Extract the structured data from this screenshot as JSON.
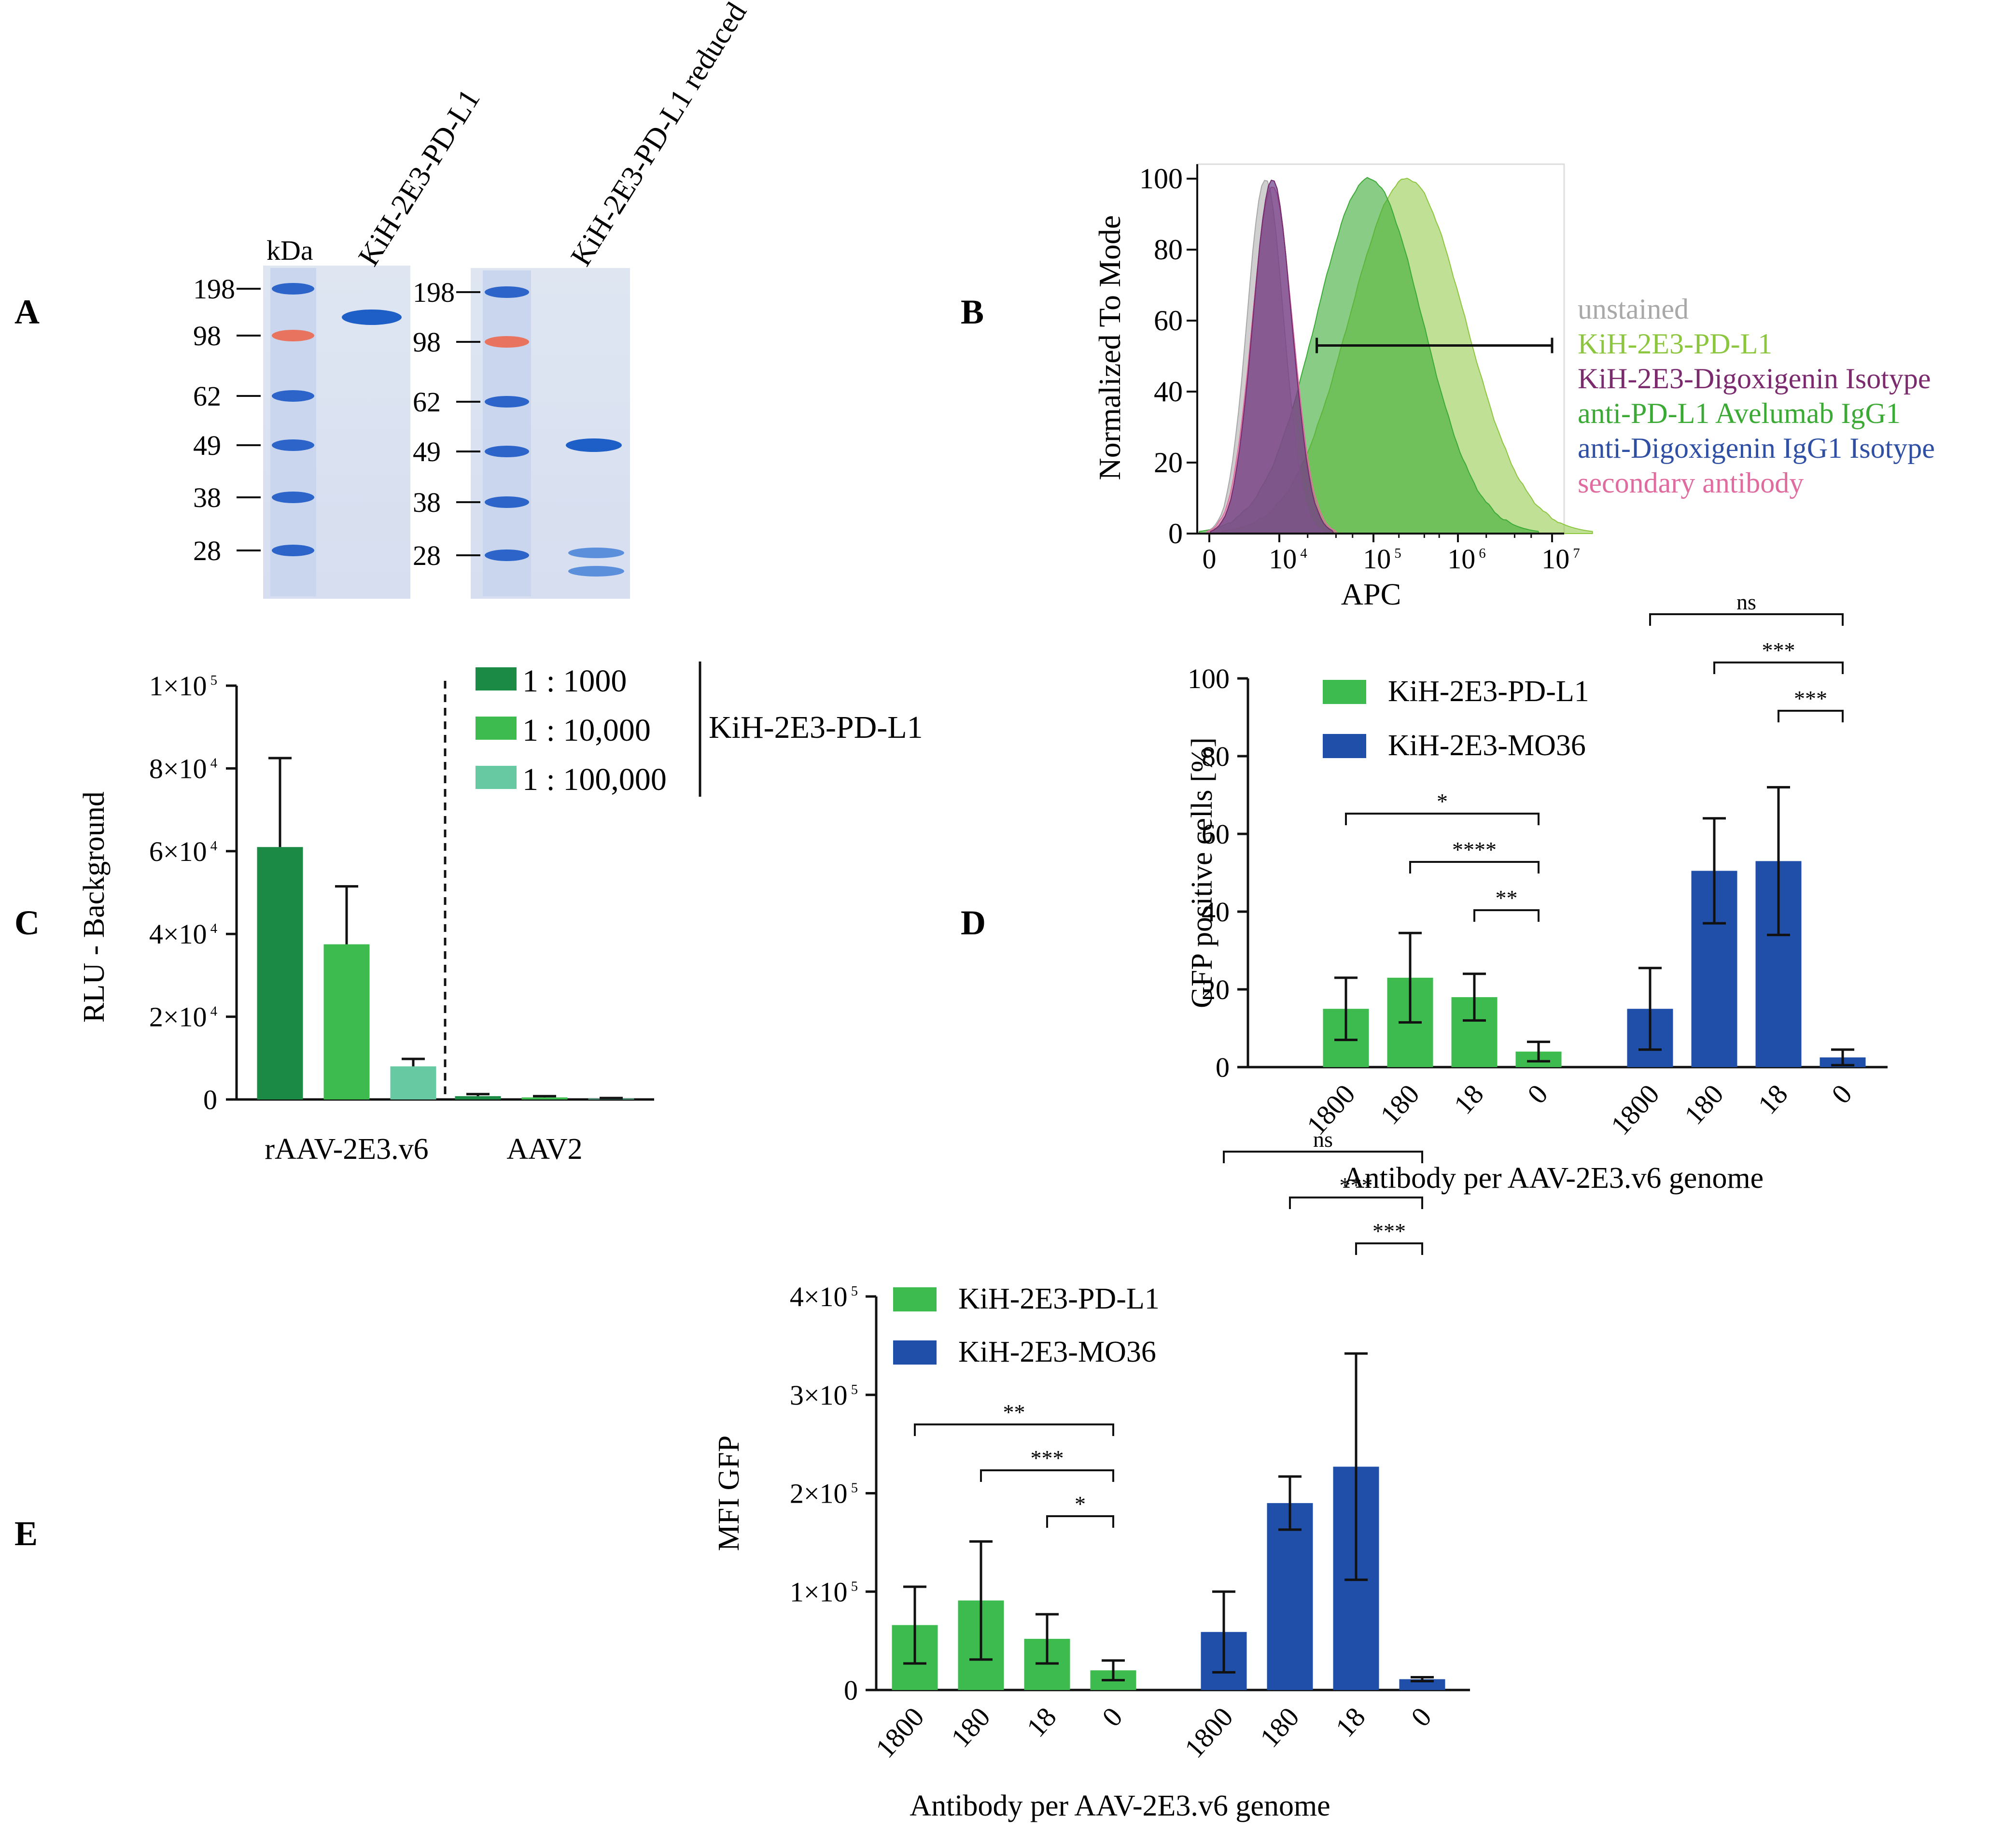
{
  "panels": {
    "A": {
      "letter": "A",
      "gel1": {
        "kda_label": "kDa",
        "lane_label": "KiH-2E3-PD-L1",
        "markers": [
          "198",
          "98",
          "62",
          "49",
          "38",
          "28"
        ]
      },
      "gel2": {
        "lane_label": "KiH-2E3-PD-L1 reduced",
        "markers": [
          "198",
          "98",
          "62",
          "49",
          "38",
          "28"
        ]
      }
    },
    "B": {
      "letter": "B",
      "ylabel": "Normalized To Mode",
      "xlabel": "APC",
      "yticks": [
        "0",
        "20",
        "40",
        "60",
        "80",
        "100"
      ],
      "xticks": [
        {
          "base": "0",
          "exp": ""
        },
        {
          "base": "10",
          "exp": "4"
        },
        {
          "base": "10",
          "exp": "5"
        },
        {
          "base": "10",
          "exp": "6"
        },
        {
          "base": "10",
          "exp": "7"
        }
      ],
      "legend": [
        {
          "label": "unstained",
          "color": "#a8a8a8"
        },
        {
          "label": "KiH-2E3-PD-L1",
          "color": "#8cc63f"
        },
        {
          "label": "KiH-2E3-Digoxigenin Isotype",
          "color": "#7b2a6e"
        },
        {
          "label": "anti-PD-L1 Avelumab IgG1",
          "color": "#3aaa35"
        },
        {
          "label": "anti-Digoxigenin IgG1 Isotype",
          "color": "#2e4fa3"
        },
        {
          "label": "secondary antibody",
          "color": "#e06c9f"
        }
      ]
    },
    "C": {
      "letter": "C",
      "legend_group_label": "KiH-2E3-PD-L1"
    },
    "D": {
      "letter": "D"
    },
    "E": {
      "letter": "E"
    }
  },
  "chart_data": [
    {
      "panel": "B",
      "type": "area",
      "title": "",
      "xlabel": "APC",
      "ylabel": "Normalized To Mode",
      "ylim": [
        0,
        100
      ],
      "x_scale": "biexponential",
      "series": [
        {
          "name": "unstained",
          "peak_x": 8000,
          "peak_y": 100
        },
        {
          "name": "KiH-2E3-Digoxigenin Isotype",
          "peak_x": 9000,
          "peak_y": 100
        },
        {
          "name": "anti-Digoxigenin IgG1 Isotype",
          "peak_x": 9000,
          "peak_y": 100
        },
        {
          "name": "secondary antibody",
          "peak_x": 9000,
          "peak_y": 98
        },
        {
          "name": "anti-PD-L1 Avelumab IgG1",
          "peak_x": 90000,
          "peak_y": 100
        },
        {
          "name": "KiH-2E3-PD-L1",
          "peak_x": 250000,
          "peak_y": 100
        }
      ],
      "gate": {
        "from": 25000,
        "to": 10000000,
        "y": 53
      }
    },
    {
      "panel": "C",
      "type": "bar",
      "title": "",
      "xlabel": "",
      "ylabel": "RLU - Background",
      "ylim": [
        0,
        100000
      ],
      "yticks": [
        {
          "value": 0,
          "base": "0",
          "exp": ""
        },
        {
          "value": 20000,
          "base": "2×10",
          "exp": "4"
        },
        {
          "value": 40000,
          "base": "4×10",
          "exp": "4"
        },
        {
          "value": 60000,
          "base": "6×10",
          "exp": "4"
        },
        {
          "value": 80000,
          "base": "8×10",
          "exp": "4"
        },
        {
          "value": 100000,
          "base": "1×10",
          "exp": "5"
        }
      ],
      "categories": [
        "rAAV-2E3.v6",
        "AAV2"
      ],
      "series": [
        {
          "name": "1 : 1000",
          "color": "#1a8a44",
          "values": [
            61000,
            800
          ],
          "errors": [
            21500,
            500
          ]
        },
        {
          "name": "1 : 10,000",
          "color": "#3dbb4f",
          "values": [
            37500,
            500
          ],
          "errors": [
            14000,
            300
          ]
        },
        {
          "name": "1 : 100,000",
          "color": "#66c9a2",
          "values": [
            8000,
            200
          ],
          "errors": [
            1800,
            150
          ]
        }
      ],
      "legend_group": "KiH-2E3-PD-L1"
    },
    {
      "panel": "D",
      "type": "bar",
      "title": "",
      "xlabel": "Antibody per AAV-2E3.v6 genome",
      "ylabel": "GFP positive cells [%]",
      "ylim": [
        0,
        100
      ],
      "yticks": [
        {
          "value": 0,
          "base": "0",
          "exp": ""
        },
        {
          "value": 20,
          "base": "20",
          "exp": ""
        },
        {
          "value": 40,
          "base": "40",
          "exp": ""
        },
        {
          "value": 60,
          "base": "60",
          "exp": ""
        },
        {
          "value": 80,
          "base": "80",
          "exp": ""
        },
        {
          "value": 100,
          "base": "100",
          "exp": ""
        }
      ],
      "categories": [
        "1800",
        "180",
        "18",
        "0"
      ],
      "series": [
        {
          "name": "KiH-2E3-PD-L1",
          "color": "#3dbb4f",
          "values": [
            15,
            23,
            18,
            4
          ],
          "errors": [
            8,
            11.5,
            6,
            2.5
          ]
        },
        {
          "name": "KiH-2E3-MO36",
          "color": "#1f4fa8",
          "values": [
            15,
            50.5,
            53,
            2.5
          ],
          "errors": [
            10.5,
            13.5,
            19,
            2
          ]
        }
      ],
      "significance": [
        {
          "group": 0,
          "from": 2,
          "to": 3,
          "label": "**",
          "level": 1
        },
        {
          "group": 0,
          "from": 1,
          "to": 3,
          "label": "****",
          "level": 2
        },
        {
          "group": 0,
          "from": 0,
          "to": 3,
          "label": "*",
          "level": 3
        },
        {
          "group": 1,
          "from": 2,
          "to": 3,
          "label": "***",
          "level": 1
        },
        {
          "group": 1,
          "from": 1,
          "to": 3,
          "label": "***",
          "level": 2
        },
        {
          "group": 1,
          "from": 0,
          "to": 3,
          "label": "ns",
          "level": 3
        }
      ]
    },
    {
      "panel": "E",
      "type": "bar",
      "title": "",
      "xlabel": "Antibody per AAV-2E3.v6 genome",
      "ylabel": "MFI GFP",
      "ylim": [
        0,
        400000
      ],
      "yticks": [
        {
          "value": 0,
          "base": "0",
          "exp": ""
        },
        {
          "value": 100000,
          "base": "1×10",
          "exp": "5"
        },
        {
          "value": 200000,
          "base": "2×10",
          "exp": "5"
        },
        {
          "value": 300000,
          "base": "3×10",
          "exp": "5"
        },
        {
          "value": 400000,
          "base": "4×10",
          "exp": "5"
        }
      ],
      "categories": [
        "1800",
        "180",
        "18",
        "0"
      ],
      "series": [
        {
          "name": "KiH-2E3-PD-L1",
          "color": "#3dbb4f",
          "values": [
            66000,
            91000,
            52000,
            20000
          ],
          "errors": [
            39000,
            60000,
            25000,
            10000
          ]
        },
        {
          "name": "KiH-2E3-MO36",
          "color": "#1f4fa8",
          "values": [
            59000,
            190000,
            227000,
            11000
          ],
          "errors": [
            41000,
            27000,
            115000,
            2000
          ]
        }
      ],
      "significance": [
        {
          "group": 0,
          "from": 2,
          "to": 3,
          "label": "*",
          "level": 1
        },
        {
          "group": 0,
          "from": 1,
          "to": 3,
          "label": "***",
          "level": 2
        },
        {
          "group": 0,
          "from": 0,
          "to": 3,
          "label": "**",
          "level": 3
        },
        {
          "group": 1,
          "from": 2,
          "to": 3,
          "label": "***",
          "level": 1
        },
        {
          "group": 1,
          "from": 1,
          "to": 3,
          "label": "***",
          "level": 2
        },
        {
          "group": 1,
          "from": 0,
          "to": 3,
          "label": "ns",
          "level": 3
        }
      ]
    }
  ]
}
